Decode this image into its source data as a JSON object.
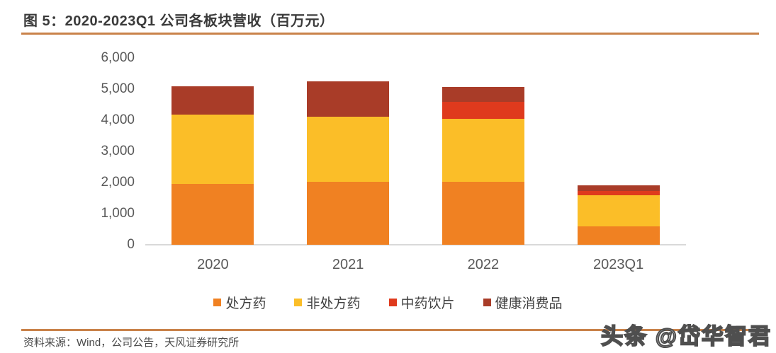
{
  "header": {
    "title": "图 5：2020-2023Q1 公司各板块营收（百万元）"
  },
  "footer": {
    "source": "资料来源：Wind，公司公告，天风证券研究所"
  },
  "watermark": {
    "text": "头条 @岱华智君"
  },
  "colors": {
    "rule": "#c9824a",
    "axis_text": "#595959",
    "baseline": "#d9d9d9",
    "title_text": "#3a3a3a"
  },
  "chart_data": {
    "type": "bar",
    "stacked": true,
    "title": "2020-2023Q1 公司各板块营收（百万元）",
    "xlabel": "",
    "ylabel": "百万元",
    "categories": [
      "2020",
      "2021",
      "2022",
      "2023Q1"
    ],
    "series": [
      {
        "name": "处方药",
        "color": "#f08122",
        "values": [
          1950,
          2020,
          2030,
          600
        ]
      },
      {
        "name": "非处方药",
        "color": "#fbbe28",
        "values": [
          2230,
          2090,
          2020,
          980
        ]
      },
      {
        "name": "中药饮片",
        "color": "#df3a1d",
        "values": [
          0,
          0,
          550,
          150
        ]
      },
      {
        "name": "健康消费品",
        "color": "#a93c28",
        "values": [
          900,
          1150,
          460,
          170
        ]
      }
    ],
    "totals": [
      5080,
      5260,
      5060,
      1900
    ],
    "ylim": [
      0,
      6000
    ],
    "yticks": [
      {
        "value": 0,
        "label": "0"
      },
      {
        "value": 1000,
        "label": "1,000"
      },
      {
        "value": 2000,
        "label": "2,000"
      },
      {
        "value": 3000,
        "label": "3,000"
      },
      {
        "value": 4000,
        "label": "4,000"
      },
      {
        "value": 5000,
        "label": "5,000"
      },
      {
        "value": 6000,
        "label": "6,000"
      }
    ],
    "grid": false,
    "legend_position": "bottom"
  }
}
